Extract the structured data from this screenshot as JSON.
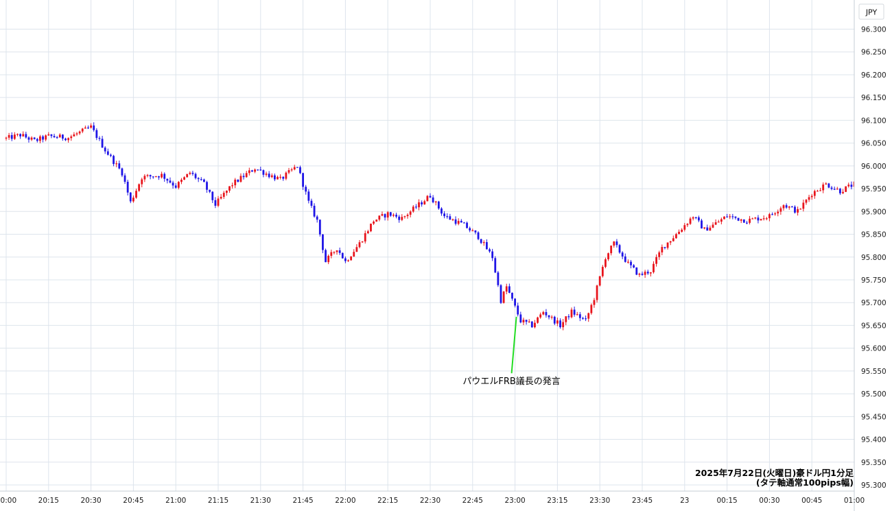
{
  "currency_label": "JPY",
  "caption": {
    "line1": "2025年7月22日(火曜日)豪ドル円1分足",
    "line2": "(タテ軸通常100pips幅)"
  },
  "annotation": {
    "text": "パウエルFRB議長の発言",
    "x": "23:00",
    "color": "#22dd22"
  },
  "colors": {
    "up": "#e8141c",
    "down": "#1e14e6",
    "grid": "#dde4ec"
  },
  "chart_data": {
    "type": "candlestick",
    "interval": "1min",
    "ylim": [
      95.3,
      96.3
    ],
    "y_ticks": [
      "96.300",
      "96.250",
      "96.200",
      "96.150",
      "96.100",
      "96.050",
      "96.000",
      "95.950",
      "95.900",
      "95.850",
      "95.800",
      "95.750",
      "95.700",
      "95.650",
      "95.600",
      "95.550",
      "95.500",
      "95.450",
      "95.400",
      "95.350",
      "95.300"
    ],
    "x_tick_labels": [
      "20:00",
      "20:15",
      "20:30",
      "20:45",
      "21:00",
      "21:15",
      "21:30",
      "21:45",
      "22:00",
      "22:15",
      "22:30",
      "22:45",
      "23:00",
      "23:15",
      "23:30",
      "23:45",
      "23",
      "00:15",
      "00:30",
      "00:45",
      "01:00"
    ],
    "anchors": [
      [
        "20:00",
        96.06
      ],
      [
        "20:05",
        96.068
      ],
      [
        "20:10",
        96.055
      ],
      [
        "20:15",
        96.065
      ],
      [
        "20:22",
        96.062
      ],
      [
        "20:30",
        96.085
      ],
      [
        "20:35",
        96.035
      ],
      [
        "20:41",
        95.985
      ],
      [
        "20:44",
        95.92
      ],
      [
        "20:48",
        95.975
      ],
      [
        "20:55",
        95.98
      ],
      [
        "21:00",
        95.955
      ],
      [
        "21:05",
        95.985
      ],
      [
        "21:10",
        95.96
      ],
      [
        "21:14",
        95.915
      ],
      [
        "21:20",
        95.96
      ],
      [
        "21:28",
        95.995
      ],
      [
        "21:33",
        95.98
      ],
      [
        "21:37",
        95.97
      ],
      [
        "21:43",
        96.0
      ],
      [
        "21:47",
        95.92
      ],
      [
        "21:50",
        95.88
      ],
      [
        "21:53",
        95.79
      ],
      [
        "21:57",
        95.82
      ],
      [
        "22:00",
        95.79
      ],
      [
        "22:05",
        95.83
      ],
      [
        "22:10",
        95.88
      ],
      [
        "22:15",
        95.895
      ],
      [
        "22:20",
        95.885
      ],
      [
        "22:25",
        95.91
      ],
      [
        "22:30",
        95.935
      ],
      [
        "22:35",
        95.89
      ],
      [
        "22:42",
        95.87
      ],
      [
        "22:47",
        95.845
      ],
      [
        "22:52",
        95.8
      ],
      [
        "22:55",
        95.705
      ],
      [
        "22:57",
        95.735
      ],
      [
        "23:00",
        95.69
      ],
      [
        "23:02",
        95.66
      ],
      [
        "23:06",
        95.65
      ],
      [
        "23:10",
        95.68
      ],
      [
        "23:16",
        95.65
      ],
      [
        "23:20",
        95.68
      ],
      [
        "23:25",
        95.66
      ],
      [
        "23:28",
        95.71
      ],
      [
        "23:32",
        95.8
      ],
      [
        "23:35",
        95.83
      ],
      [
        "23:40",
        95.785
      ],
      [
        "23:44",
        95.76
      ],
      [
        "23:48",
        95.77
      ],
      [
        "23:52",
        95.82
      ],
      [
        "23:57",
        95.85
      ],
      [
        "00:03",
        95.89
      ],
      [
        "00:07",
        95.86
      ],
      [
        "00:10",
        95.87
      ],
      [
        "00:15",
        95.89
      ],
      [
        "00:22",
        95.88
      ],
      [
        "00:30",
        95.89
      ],
      [
        "00:35",
        95.915
      ],
      [
        "00:40",
        95.9
      ],
      [
        "00:45",
        95.94
      ],
      [
        "00:50",
        95.96
      ],
      [
        "00:55",
        95.945
      ],
      [
        "01:00",
        95.96
      ]
    ]
  }
}
